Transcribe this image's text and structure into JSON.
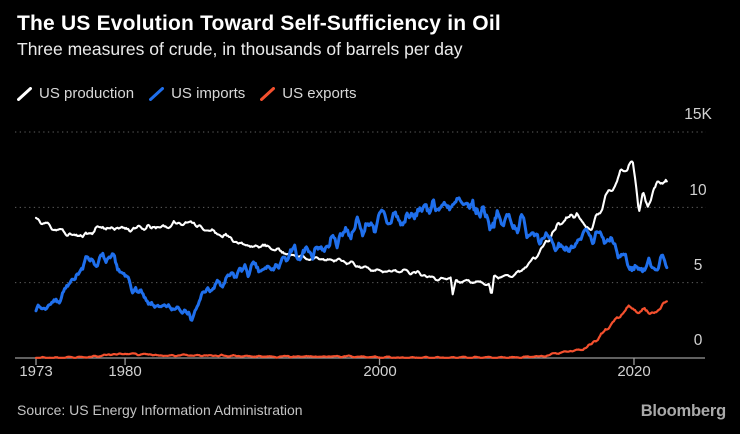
{
  "chart_data": {
    "type": "line",
    "title": "The US Evolution Toward Self-Sufficiency in Oil",
    "subtitle": "Three measures of crude, in thousands of barrels per day",
    "unit": "thousands of barrels per day",
    "xlim": [
      1973,
      2022.6
    ],
    "ylim": [
      0,
      15
    ],
    "grid": "horizontal-dotted",
    "legend_position": "top-left",
    "x_ticks": [
      {
        "value": 1973,
        "label": "1973"
      },
      {
        "value": 1980,
        "label": "1980"
      },
      {
        "value": 2000,
        "label": "2000"
      },
      {
        "value": 2020,
        "label": "2020"
      }
    ],
    "y_ticks": [
      {
        "value": 0,
        "label": "0"
      },
      {
        "value": 5,
        "label": "5"
      },
      {
        "value": 10,
        "label": "10"
      },
      {
        "value": 15,
        "label": "15K"
      }
    ],
    "series": [
      {
        "name": "US production",
        "color": "#ffffff",
        "x": [
          1973,
          1974,
          1975,
          1976,
          1977,
          1978,
          1979,
          1980,
          1981,
          1982,
          1983,
          1984,
          1985,
          1986,
          1987,
          1988,
          1989,
          1990,
          1991,
          1992,
          1993,
          1994,
          1995,
          1996,
          1997,
          1998,
          1999,
          2000,
          2001,
          2002,
          2003,
          2004,
          2005,
          2005.6,
          2005.75,
          2006,
          2007,
          2008,
          2008.6,
          2008.8,
          2009,
          2010,
          2011,
          2012,
          2013,
          2014,
          2015,
          2015.5,
          2016,
          2016.7,
          2017,
          2018,
          2019,
          2019.9,
          2020.4,
          2020.7,
          2021.1,
          2021.5,
          2022,
          2022.5
        ],
        "values": [
          9.2,
          8.8,
          8.4,
          8.1,
          8.2,
          8.7,
          8.6,
          8.6,
          8.6,
          8.65,
          8.7,
          8.9,
          9.0,
          8.7,
          8.35,
          8.1,
          7.6,
          7.4,
          7.4,
          7.2,
          6.85,
          6.7,
          6.6,
          6.5,
          6.45,
          6.25,
          5.9,
          5.8,
          5.8,
          5.75,
          5.7,
          5.4,
          5.2,
          5.35,
          4.2,
          5.1,
          5.1,
          5.0,
          5.0,
          4.1,
          5.35,
          5.5,
          5.65,
          6.5,
          7.5,
          8.8,
          9.4,
          9.6,
          8.9,
          8.6,
          9.35,
          10.95,
          12.3,
          13.0,
          9.9,
          10.9,
          10.0,
          11.3,
          11.6,
          11.9
        ]
      },
      {
        "name": "US imports",
        "color": "#1f6fec",
        "x": [
          1973,
          1974,
          1975,
          1976,
          1977,
          1978,
          1979,
          1980,
          1981,
          1982,
          1983,
          1984,
          1985,
          1985.2,
          1986,
          1987,
          1988,
          1989,
          1990,
          1991,
          1992,
          1993,
          1994,
          1995,
          1996,
          1997,
          1998,
          1999,
          2000,
          2001,
          2002,
          2003,
          2004,
          2005,
          2006,
          2007,
          2008,
          2009,
          2010,
          2011,
          2012,
          2013,
          2014,
          2015,
          2016,
          2017,
          2018,
          2019,
          2020,
          2021,
          2022,
          2022.5
        ],
        "values": [
          3.2,
          3.5,
          4.1,
          5.3,
          6.6,
          6.4,
          6.5,
          5.3,
          4.4,
          3.5,
          3.3,
          3.4,
          3.1,
          2.3,
          4.2,
          4.7,
          5.1,
          5.8,
          5.9,
          5.8,
          6.1,
          6.8,
          7.0,
          7.2,
          7.5,
          8.2,
          8.7,
          8.7,
          9.1,
          9.3,
          9.1,
          9.65,
          10.1,
          10.1,
          10.1,
          10.0,
          9.8,
          9.0,
          9.2,
          8.9,
          8.5,
          7.7,
          7.3,
          7.4,
          7.9,
          8.0,
          7.75,
          6.8,
          5.9,
          6.1,
          6.3,
          6.4
        ]
      },
      {
        "name": "US exports",
        "color": "#f4502e",
        "x": [
          1973,
          1975,
          1977,
          1978,
          1979,
          1980,
          1981,
          1982,
          1983,
          1984,
          1985,
          1986,
          1988,
          1990,
          1992,
          1994,
          1996,
          1998,
          2000,
          2002,
          2004,
          2006,
          2008,
          2010,
          2012,
          2013,
          2014,
          2015,
          2016,
          2017,
          2018,
          2019,
          2019.8,
          2020.3,
          2020.8,
          2021.3,
          2021.8,
          2022.2,
          2022.5
        ],
        "values": [
          0.02,
          0.01,
          0.05,
          0.16,
          0.24,
          0.29,
          0.23,
          0.24,
          0.16,
          0.18,
          0.2,
          0.15,
          0.16,
          0.11,
          0.09,
          0.1,
          0.11,
          0.11,
          0.05,
          0.01,
          0.03,
          0.02,
          0.03,
          0.04,
          0.07,
          0.13,
          0.35,
          0.47,
          0.59,
          1.12,
          2.05,
          2.98,
          3.4,
          3.0,
          3.3,
          2.9,
          3.1,
          3.6,
          3.75
        ]
      }
    ]
  },
  "footer": {
    "source": "Source: US Energy Information Administration",
    "brand": "Bloomberg"
  }
}
